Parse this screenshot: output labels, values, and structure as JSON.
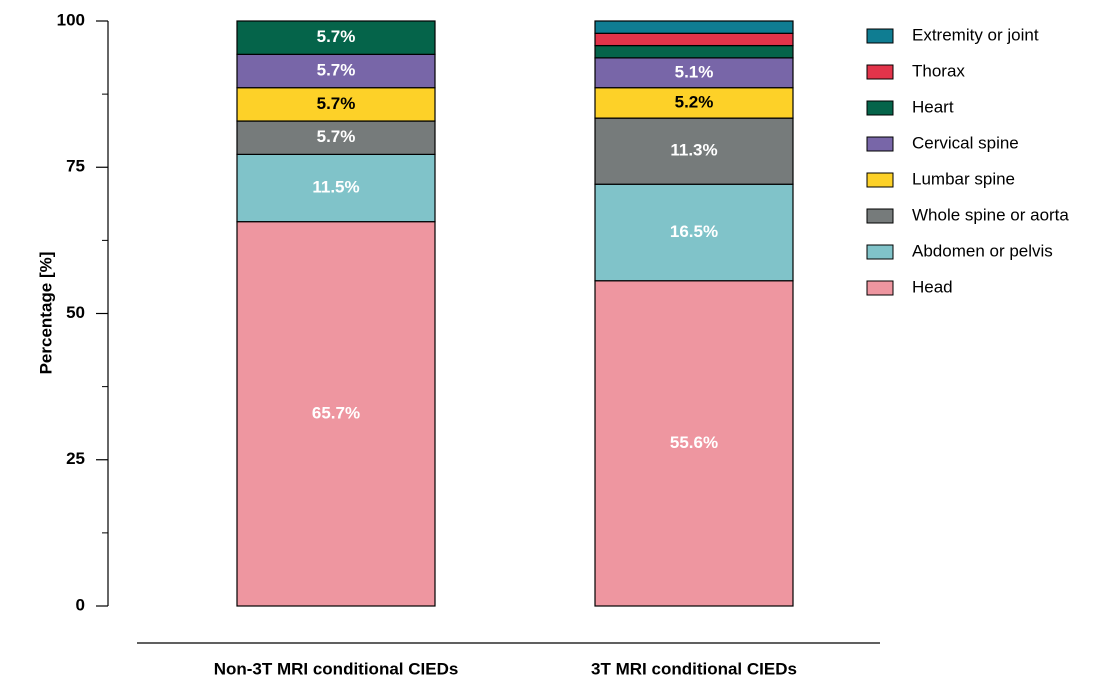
{
  "chart_data": {
    "type": "stacked_bar",
    "ylabel": "Percentage [%]",
    "categories": [
      "Non-3T MRI conditional CIEDs",
      "3T MRI conditional CIEDs"
    ],
    "ylim": [
      0,
      100
    ],
    "yticks": [
      0,
      25,
      50,
      75,
      100
    ],
    "minor_yticks": [
      12.5,
      37.5,
      62.5,
      87.5
    ],
    "legend": "right",
    "series": [
      {
        "name": "Head",
        "color": "#ee96a0",
        "label_color": "#ffffff",
        "values": [
          65.7,
          55.6
        ],
        "value_labels": [
          "65.7%",
          "55.6%"
        ]
      },
      {
        "name": "Abdomen or pelvis",
        "color": "#80c3c9",
        "label_color": "#ffffff",
        "values": [
          11.5,
          16.5
        ],
        "value_labels": [
          "11.5%",
          "16.5%"
        ]
      },
      {
        "name": "Whole spine or aorta",
        "color": "#767b7b",
        "label_color": "#ffffff",
        "values": [
          5.7,
          11.3
        ],
        "value_labels": [
          "5.7%",
          "11.3%"
        ]
      },
      {
        "name": "Lumbar spine",
        "color": "#fdd128",
        "label_color": "#000000",
        "values": [
          5.7,
          5.2
        ],
        "value_labels": [
          "5.7%",
          "5.2%"
        ]
      },
      {
        "name": "Cervical spine",
        "color": "#7866a8",
        "label_color": "#ffffff",
        "values": [
          5.7,
          5.1
        ],
        "value_labels": [
          "5.7%",
          "5.1%"
        ]
      },
      {
        "name": "Heart",
        "color": "#05644a",
        "label_color": "#ffffff",
        "values": [
          5.7,
          2.1
        ],
        "value_labels": [
          "5.7%",
          null
        ]
      },
      {
        "name": "Thorax",
        "color": "#e2344a",
        "label_color": "#ffffff",
        "values": [
          0,
          2.1
        ],
        "value_labels": [
          null,
          null
        ]
      },
      {
        "name": "Extremity or joint",
        "color": "#0f7d92",
        "label_color": "#ffffff",
        "values": [
          0,
          2.1
        ],
        "value_labels": [
          null,
          null
        ]
      }
    ]
  }
}
